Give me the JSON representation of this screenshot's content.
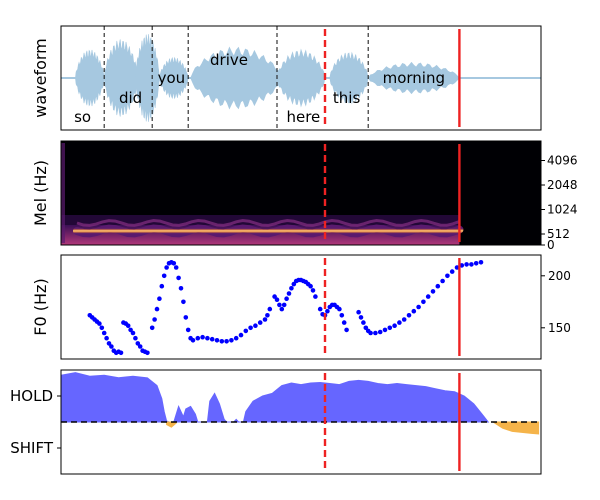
{
  "chart_data": [
    {
      "type": "area",
      "panel": "waveform",
      "ylabel": "waveform",
      "xlim": [
        0,
        10
      ],
      "ylim": [
        -1,
        1
      ],
      "ticks": "none",
      "color": "#a6c8e0",
      "segments": [
        {
          "start": 0.3,
          "end": 0.9,
          "amp": 0.55
        },
        {
          "start": 0.9,
          "end": 1.6,
          "amp": 0.75
        },
        {
          "start": 1.55,
          "end": 2.05,
          "amp": 0.85
        },
        {
          "start": 2.05,
          "end": 2.65,
          "amp": 0.4
        },
        {
          "start": 2.7,
          "end": 4.6,
          "amp": 0.6
        },
        {
          "start": 4.5,
          "end": 5.5,
          "amp": 0.55
        },
        {
          "start": 5.6,
          "end": 6.4,
          "amp": 0.5
        },
        {
          "start": 6.4,
          "end": 8.3,
          "amp": 0.3
        }
      ],
      "words": [
        {
          "text": "so",
          "x": 0.45,
          "y": -0.75
        },
        {
          "text": "did",
          "x": 1.45,
          "y": -0.38
        },
        {
          "text": "you",
          "x": 2.3,
          "y": 0.0
        },
        {
          "text": "drive",
          "x": 3.5,
          "y": 0.35
        },
        {
          "text": "here",
          "x": 5.05,
          "y": -0.75
        },
        {
          "text": "this",
          "x": 5.95,
          "y": -0.38
        },
        {
          "text": "morning",
          "x": 7.35,
          "y": 0.0
        }
      ],
      "boundaries": [
        0.9,
        1.9,
        2.65,
        4.5,
        6.4
      ],
      "current_x": 5.5,
      "end_x": 8.3
    },
    {
      "type": "heatmap",
      "panel": "mel",
      "ylabel": "Mel (Hz)",
      "xlim": [
        0,
        10
      ],
      "yticks": [
        "0",
        "512",
        "1024",
        "2048",
        "4096"
      ],
      "voiced_end": 8.3,
      "current_x": 5.5,
      "end_x": 8.3
    },
    {
      "type": "scatter",
      "panel": "f0",
      "ylabel": "F0 (Hz)",
      "xlim": [
        0,
        10
      ],
      "ylim": [
        120,
        220
      ],
      "yticks": [
        150,
        200
      ],
      "color": "#0000ff",
      "points": [
        [
          0.6,
          162
        ],
        [
          0.65,
          160
        ],
        [
          0.7,
          158
        ],
        [
          0.75,
          156
        ],
        [
          0.8,
          154
        ],
        [
          0.85,
          150
        ],
        [
          0.9,
          145
        ],
        [
          0.95,
          140
        ],
        [
          1.0,
          135
        ],
        [
          1.05,
          132
        ],
        [
          1.1,
          128
        ],
        [
          1.15,
          126
        ],
        [
          1.2,
          127
        ],
        [
          1.25,
          126
        ],
        [
          1.3,
          155
        ],
        [
          1.35,
          154
        ],
        [
          1.4,
          152
        ],
        [
          1.45,
          148
        ],
        [
          1.5,
          145
        ],
        [
          1.55,
          140
        ],
        [
          1.6,
          135
        ],
        [
          1.65,
          132
        ],
        [
          1.7,
          128
        ],
        [
          1.75,
          127
        ],
        [
          1.8,
          126
        ],
        [
          1.9,
          150
        ],
        [
          1.95,
          158
        ],
        [
          2.0,
          168
        ],
        [
          2.05,
          178
        ],
        [
          2.1,
          190
        ],
        [
          2.15,
          200
        ],
        [
          2.2,
          208
        ],
        [
          2.25,
          212
        ],
        [
          2.3,
          213
        ],
        [
          2.35,
          212
        ],
        [
          2.4,
          208
        ],
        [
          2.45,
          198
        ],
        [
          2.5,
          188
        ],
        [
          2.55,
          175
        ],
        [
          2.6,
          160
        ],
        [
          2.65,
          148
        ],
        [
          2.7,
          140
        ],
        [
          2.75,
          138
        ],
        [
          2.85,
          140
        ],
        [
          2.95,
          141
        ],
        [
          3.05,
          140
        ],
        [
          3.15,
          139
        ],
        [
          3.25,
          138
        ],
        [
          3.35,
          137
        ],
        [
          3.45,
          137
        ],
        [
          3.55,
          138
        ],
        [
          3.65,
          140
        ],
        [
          3.75,
          143
        ],
        [
          3.85,
          147
        ],
        [
          3.95,
          150
        ],
        [
          4.05,
          152
        ],
        [
          4.15,
          155
        ],
        [
          4.25,
          158
        ],
        [
          4.3,
          162
        ],
        [
          4.35,
          168
        ],
        [
          4.45,
          180
        ],
        [
          4.5,
          177
        ],
        [
          4.55,
          172
        ],
        [
          4.6,
          168
        ],
        [
          4.65,
          172
        ],
        [
          4.7,
          178
        ],
        [
          4.75,
          183
        ],
        [
          4.8,
          188
        ],
        [
          4.85,
          192
        ],
        [
          4.9,
          195
        ],
        [
          4.95,
          196
        ],
        [
          5.0,
          196
        ],
        [
          5.05,
          195
        ],
        [
          5.1,
          194
        ],
        [
          5.15,
          192
        ],
        [
          5.2,
          190
        ],
        [
          5.25,
          186
        ],
        [
          5.3,
          180
        ],
        [
          5.4,
          168
        ],
        [
          5.45,
          163
        ],
        [
          5.5,
          162
        ],
        [
          5.55,
          166
        ],
        [
          5.6,
          170
        ],
        [
          5.65,
          172
        ],
        [
          5.7,
          172
        ],
        [
          5.75,
          170
        ],
        [
          5.8,
          168
        ],
        [
          5.85,
          162
        ],
        [
          5.9,
          155
        ],
        [
          5.95,
          148
        ],
        [
          6.2,
          165
        ],
        [
          6.25,
          160
        ],
        [
          6.3,
          155
        ],
        [
          6.35,
          150
        ],
        [
          6.4,
          147
        ],
        [
          6.45,
          145
        ],
        [
          6.55,
          145
        ],
        [
          6.65,
          146
        ],
        [
          6.75,
          148
        ],
        [
          6.85,
          150
        ],
        [
          6.95,
          152
        ],
        [
          7.05,
          155
        ],
        [
          7.15,
          158
        ],
        [
          7.25,
          162
        ],
        [
          7.35,
          166
        ],
        [
          7.45,
          170
        ],
        [
          7.55,
          175
        ],
        [
          7.65,
          180
        ],
        [
          7.75,
          185
        ],
        [
          7.85,
          190
        ],
        [
          7.95,
          195
        ],
        [
          8.05,
          200
        ],
        [
          8.15,
          204
        ],
        [
          8.25,
          208
        ],
        [
          8.35,
          210
        ],
        [
          8.45,
          211
        ],
        [
          8.55,
          211
        ],
        [
          8.65,
          212
        ],
        [
          8.75,
          213
        ]
      ],
      "current_x": 5.5,
      "end_x": 8.3
    },
    {
      "type": "area",
      "panel": "turn",
      "xlim": [
        0,
        10
      ],
      "ylim": [
        -1,
        1
      ],
      "yticks": [
        "HOLD",
        "SHIFT"
      ],
      "hold_color": "#6666ff",
      "shift_color": "#f5b44a",
      "hold_fill": [
        [
          0.0,
          0.9
        ],
        [
          0.3,
          0.95
        ],
        [
          0.6,
          0.88
        ],
        [
          0.9,
          0.9
        ],
        [
          1.2,
          0.85
        ],
        [
          1.5,
          0.88
        ],
        [
          1.8,
          0.85
        ],
        [
          2.0,
          0.7
        ],
        [
          2.1,
          0.45
        ],
        [
          2.15,
          0.2
        ],
        [
          2.2,
          0.02
        ],
        [
          2.25,
          0.0
        ],
        [
          2.35,
          0.0
        ],
        [
          2.4,
          0.15
        ],
        [
          2.45,
          0.3
        ],
        [
          2.55,
          0.1
        ],
        [
          2.6,
          0.25
        ],
        [
          2.7,
          0.3
        ],
        [
          2.8,
          0.15
        ],
        [
          2.85,
          0.0
        ],
        [
          3.05,
          0.0
        ],
        [
          3.1,
          0.4
        ],
        [
          3.2,
          0.55
        ],
        [
          3.3,
          0.35
        ],
        [
          3.4,
          0.05
        ],
        [
          3.45,
          0.0
        ],
        [
          3.6,
          0.0
        ],
        [
          3.65,
          0.05
        ],
        [
          3.7,
          0.0
        ],
        [
          3.8,
          0.0
        ],
        [
          3.85,
          0.2
        ],
        [
          4.0,
          0.4
        ],
        [
          4.2,
          0.5
        ],
        [
          4.4,
          0.55
        ],
        [
          4.6,
          0.7
        ],
        [
          4.8,
          0.75
        ],
        [
          5.0,
          0.72
        ],
        [
          5.2,
          0.75
        ],
        [
          5.4,
          0.76
        ],
        [
          5.6,
          0.74
        ],
        [
          5.8,
          0.72
        ],
        [
          6.0,
          0.78
        ],
        [
          6.2,
          0.8
        ],
        [
          6.4,
          0.78
        ],
        [
          6.6,
          0.74
        ],
        [
          6.8,
          0.72
        ],
        [
          7.0,
          0.74
        ],
        [
          7.2,
          0.72
        ],
        [
          7.4,
          0.7
        ],
        [
          7.6,
          0.68
        ],
        [
          7.8,
          0.64
        ],
        [
          8.0,
          0.6
        ],
        [
          8.2,
          0.58
        ],
        [
          8.4,
          0.5
        ],
        [
          8.6,
          0.35
        ],
        [
          8.8,
          0.12
        ],
        [
          8.9,
          0.0
        ]
      ],
      "shift_fill": [
        [
          2.2,
          -0.05
        ],
        [
          2.3,
          -0.1
        ],
        [
          2.4,
          -0.02
        ],
        [
          9.0,
          0.0
        ],
        [
          9.2,
          -0.12
        ],
        [
          9.4,
          -0.18
        ],
        [
          9.6,
          -0.2
        ],
        [
          9.8,
          -0.22
        ],
        [
          9.95,
          -0.23
        ]
      ],
      "threshold": 0,
      "current_x": 5.5,
      "end_x": 8.3
    }
  ]
}
